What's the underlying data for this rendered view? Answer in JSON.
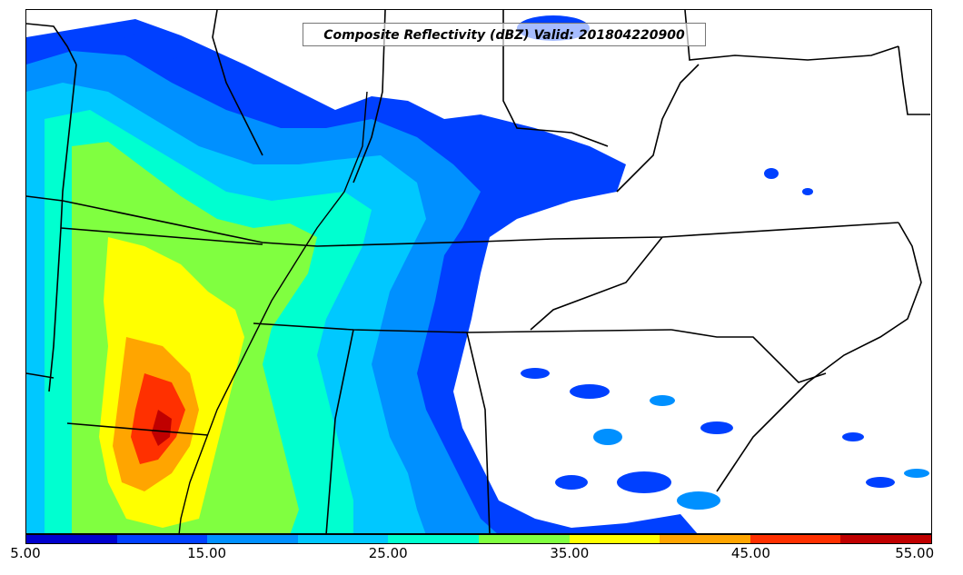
{
  "title": "Composite Reflectivity (dBZ) Valid: 201804220900",
  "colorbar": {
    "colors": [
      "#0000cd",
      "#0040ff",
      "#0090ff",
      "#00c8ff",
      "#00ffd0",
      "#80ff40",
      "#ffff00",
      "#ffa500",
      "#ff3000",
      "#c00000"
    ],
    "tick_labels": [
      "5.00",
      "15.00",
      "25.00",
      "35.00",
      "45.00",
      "55.00"
    ],
    "tick_values": [
      5,
      15,
      25,
      35,
      45,
      55
    ],
    "range": [
      5,
      55
    ]
  },
  "map_layers": {
    "reflectivity_palette_levels": [
      5,
      10,
      15,
      20,
      25,
      30,
      35,
      40,
      45,
      50,
      55
    ],
    "boundaries": "state-outlines"
  }
}
